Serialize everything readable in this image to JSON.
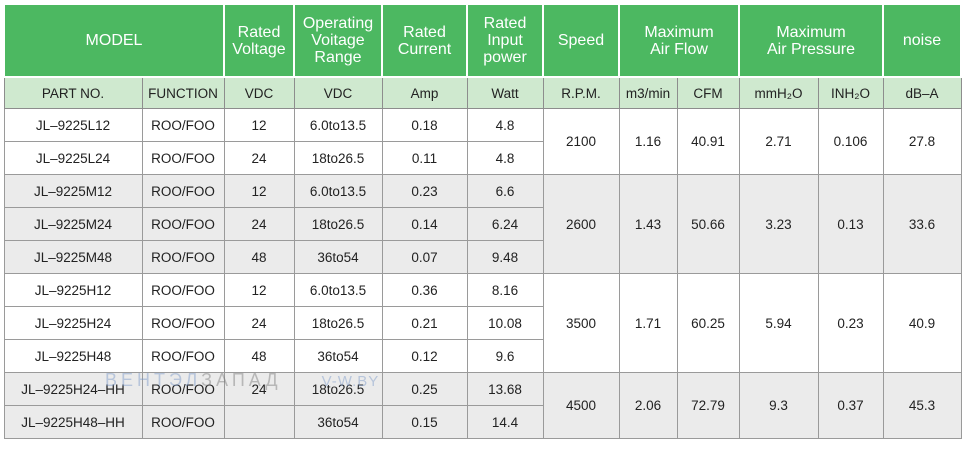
{
  "header": {
    "model": "MODEL",
    "rated_voltage": "Rated\nVoltage",
    "operating_voltage": "Operating\nVoitage\nRange",
    "rated_current": "Rated\nCurrent",
    "rated_input_power": "Rated\nInput\npower",
    "speed": "Speed",
    "max_air_flow": "Maximum\nAir Flow",
    "max_air_pressure": "Maximum\nAir Pressure",
    "noise": "noise"
  },
  "subheader": {
    "part_no": "PART NO.",
    "function": "FUNCTION",
    "vdc1": "VDC",
    "vdc2": "VDC",
    "amp": "Amp",
    "watt": "Watt",
    "rpm": "R.P.M.",
    "m3min": "m3/min",
    "cfm": "CFM",
    "mmh2o": "mmH₂O",
    "inh2o": "INH₂O",
    "dba": "dB–A"
  },
  "rows": [
    {
      "part": "JL–9225L12",
      "func": "ROO/FOO",
      "vdc": "12",
      "range": "6.0to13.5",
      "amp": "0.18",
      "watt": "4.8"
    },
    {
      "part": "JL–9225L24",
      "func": "ROO/FOO",
      "vdc": "24",
      "range": "18to26.5",
      "amp": "0.11",
      "watt": "4.8"
    },
    {
      "part": "JL–9225M12",
      "func": "ROO/FOO",
      "vdc": "12",
      "range": "6.0to13.5",
      "amp": "0.23",
      "watt": "6.6"
    },
    {
      "part": "JL–9225M24",
      "func": "ROO/FOO",
      "vdc": "24",
      "range": "18to26.5",
      "amp": "0.14",
      "watt": "6.24"
    },
    {
      "part": "JL–9225M48",
      "func": "ROO/FOO",
      "vdc": "48",
      "range": "36to54",
      "amp": "0.07",
      "watt": "9.48"
    },
    {
      "part": "JL–9225H12",
      "func": "ROO/FOO",
      "vdc": "12",
      "range": "6.0to13.5",
      "amp": "0.36",
      "watt": "8.16"
    },
    {
      "part": "JL–9225H24",
      "func": "ROO/FOO",
      "vdc": "24",
      "range": "18to26.5",
      "amp": "0.21",
      "watt": "10.08"
    },
    {
      "part": "JL–9225H48",
      "func": "ROO/FOO",
      "vdc": "48",
      "range": "36to54",
      "amp": "0.12",
      "watt": "9.6"
    },
    {
      "part": "JL–9225H24–HH",
      "func": "ROO/FOO",
      "vdc": "24",
      "range": "18to26.5",
      "amp": "0.25",
      "watt": "13.68"
    },
    {
      "part": "JL–9225H48–HH",
      "func": "ROO/FOO",
      "vdc": "",
      "range": "36to54",
      "amp": "0.15",
      "watt": "14.4"
    }
  ],
  "groups": [
    {
      "rpm": "2100",
      "m3min": "1.16",
      "cfm": "40.91",
      "mmh2o": "2.71",
      "inh2o": "0.106",
      "dba": "27.8"
    },
    {
      "rpm": "2600",
      "m3min": "1.43",
      "cfm": "50.66",
      "mmh2o": "3.23",
      "inh2o": "0.13",
      "dba": "33.6"
    },
    {
      "rpm": "3500",
      "m3min": "1.71",
      "cfm": "60.25",
      "mmh2o": "5.94",
      "inh2o": "0.23",
      "dba": "40.9"
    },
    {
      "rpm": "4500",
      "m3min": "2.06",
      "cfm": "72.79",
      "mmh2o": "9.3",
      "inh2o": "0.37",
      "dba": "45.3"
    }
  ],
  "watermark": {
    "part1": "ВЕНТЭЛ",
    "part2": "ЗАПАД",
    "part3": "V-W.BY"
  }
}
